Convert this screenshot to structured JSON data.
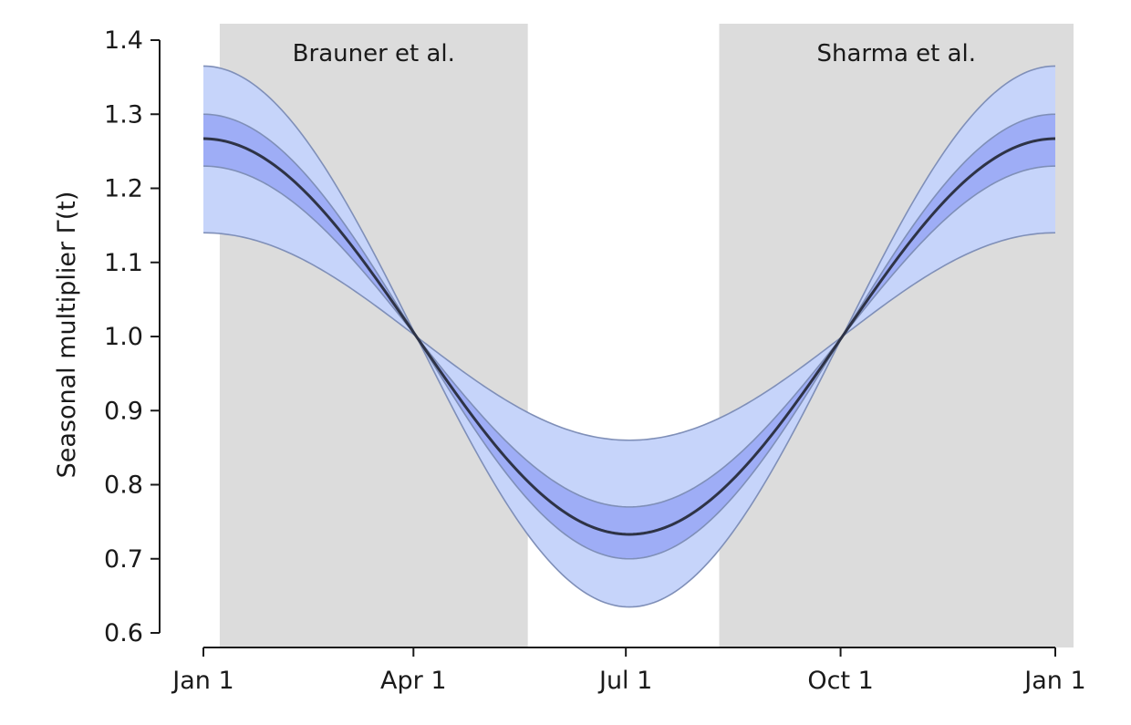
{
  "chart_data": {
    "type": "area",
    "ylabel": "Seasonal multiplier Γ(t)",
    "xlabel": "",
    "xlim": [
      "Jan 1",
      "Jan 1"
    ],
    "ylim": [
      0.6,
      1.4
    ],
    "x_ticks": [
      "Jan 1",
      "Apr 1",
      "Jul 1",
      "Oct 1",
      "Jan 1"
    ],
    "y_ticks": [
      "0.6",
      "0.7",
      "0.8",
      "0.9",
      "1.0",
      "1.1",
      "1.2",
      "1.3",
      "1.4"
    ],
    "shaded_regions": [
      {
        "label": "Brauner et al.",
        "start": "Jan 8",
        "end": "May 20"
      },
      {
        "label": "Sharma et al.",
        "start": "Aug 10",
        "end": "Jan 1"
      }
    ],
    "peak_date": "Jan 1",
    "series": [
      {
        "role": "median",
        "amplitude": 0.267
      },
      {
        "role": "inner-band",
        "amplitude_low": 0.23,
        "amplitude_high": 0.3
      },
      {
        "role": "outer-band",
        "amplitude_low": 0.14,
        "amplitude_high": 0.365
      }
    ],
    "grid": false,
    "colors": {
      "region": "#dcdcdc",
      "outer_band": "#c6d4fa",
      "inner_band": "#9eadf6",
      "band_edge": "#7f8fb8",
      "median": "#2e3346",
      "axis": "#1a1a1a"
    }
  }
}
